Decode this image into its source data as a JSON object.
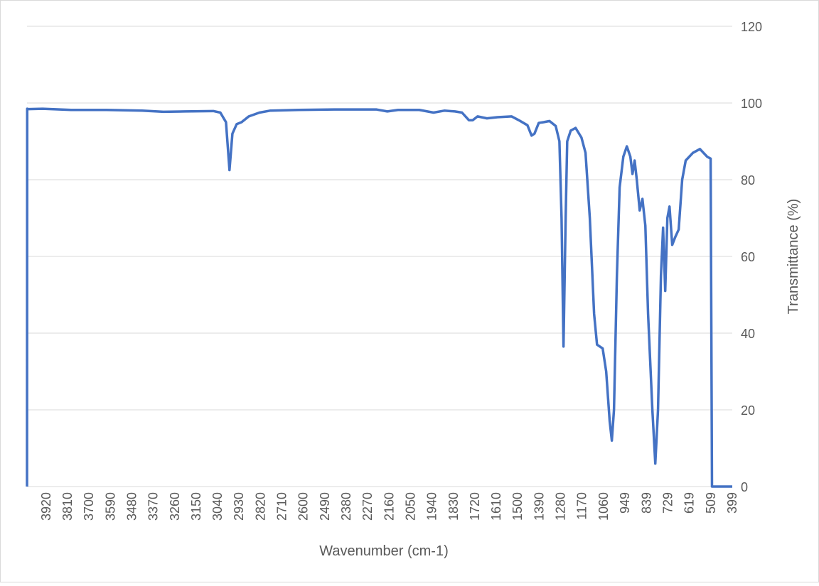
{
  "chart_data": {
    "type": "line",
    "x_label": "Wavenumber (cm-1)",
    "y_label": "Transmittance (%)",
    "xlim": [
      4018,
      399
    ],
    "xticks": [
      3920,
      3810,
      3700,
      3590,
      3480,
      3370,
      3260,
      3150,
      3040,
      2930,
      2820,
      2710,
      2600,
      2490,
      2380,
      2270,
      2160,
      2050,
      1940,
      1830,
      1720,
      1610,
      1500,
      1390,
      1280,
      1170,
      1060,
      949,
      839,
      729,
      619,
      509,
      399
    ],
    "ylim": [
      0,
      120
    ],
    "yticks": [
      0,
      20,
      40,
      60,
      80,
      100,
      120
    ],
    "grid": true,
    "series": [
      {
        "name": "Transmittance",
        "color": "#4472c4",
        "x": [
          4018,
          4017,
          4011,
          3938,
          3792,
          3610,
          3427,
          3318,
          3208,
          3062,
          3026,
          2997,
          2979,
          2964,
          2942,
          2917,
          2880,
          2825,
          2771,
          2625,
          2442,
          2224,
          2169,
          2114,
          2005,
          1932,
          1877,
          1822,
          1786,
          1750,
          1731,
          1706,
          1658,
          1604,
          1531,
          1494,
          1450,
          1429,
          1414,
          1392,
          1367,
          1337,
          1305,
          1286,
          1275,
          1265,
          1254,
          1246,
          1228,
          1203,
          1173,
          1152,
          1130,
          1108,
          1093,
          1064,
          1046,
          1028,
          1017,
          1006,
          991,
          977,
          958,
          940,
          922,
          911,
          900,
          889,
          874,
          860,
          845,
          831,
          809,
          794,
          780,
          765,
          754,
          743,
          732,
          721,
          707,
          692,
          674,
          656,
          638,
          601,
          565,
          528,
          510,
          503,
          399
        ],
        "values": [
          0,
          98.5,
          98.4,
          98.5,
          98.2,
          98.2,
          98,
          97.7,
          97.8,
          97.9,
          97.5,
          95,
          82.5,
          92,
          94.5,
          95,
          96.5,
          97.5,
          98,
          98.2,
          98.3,
          98.3,
          97.8,
          98.2,
          98.2,
          97.5,
          98,
          97.8,
          97.5,
          95.5,
          95.5,
          96.5,
          96,
          96.3,
          96.5,
          95.5,
          94.2,
          91.5,
          92,
          94.8,
          95,
          95.3,
          94,
          90,
          70,
          36.5,
          70,
          90,
          92.8,
          93.5,
          91,
          87,
          70,
          45,
          37,
          36,
          30,
          17,
          12,
          20,
          55,
          78,
          86,
          88.7,
          86,
          81.5,
          85,
          80,
          72,
          75,
          68,
          45,
          20,
          6,
          20,
          55,
          67.5,
          51,
          70,
          73,
          63,
          65,
          67,
          80,
          85,
          87,
          88,
          86,
          85.5,
          0,
          0
        ]
      }
    ]
  }
}
